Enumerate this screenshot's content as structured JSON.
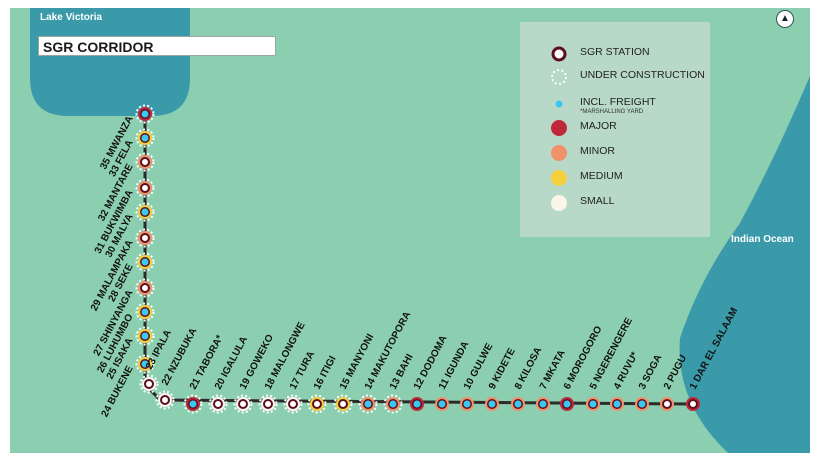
{
  "map": {
    "title": "SGR CORRIDOR",
    "lake_label": "Lake Victoria",
    "ocean_label": "Indian Ocean",
    "compass_glyph": "▲",
    "colors": {
      "land": "#8ccfb0",
      "water": "#3a9aaa",
      "rail": "#2b2b2b",
      "station_ring": "#5a1020",
      "major": "#c0273a",
      "minor": "#f0916a",
      "medium": "#f5cf3c",
      "small": "#fbf6e8",
      "freight": "#3bc8f0"
    }
  },
  "legend": {
    "items": [
      {
        "key": "station",
        "label": "SGR STATION"
      },
      {
        "key": "construction",
        "label": "UNDER CONSTRUCTION"
      },
      {
        "key": "freight",
        "label": "INCL. FREIGHT",
        "sub": "*MARSHALLING YARD"
      },
      {
        "key": "major",
        "label": "MAJOR"
      },
      {
        "key": "minor",
        "label": "MINOR"
      },
      {
        "key": "medium",
        "label": "MEDIUM"
      },
      {
        "key": "small",
        "label": "SMALL"
      }
    ]
  },
  "stations": [
    {
      "num": 1,
      "name": "DAR EL SALAAM",
      "label": "1 DAR EL SALAAM",
      "size": "major",
      "freight": false,
      "construction": false
    },
    {
      "num": 2,
      "name": "PUGU",
      "label": "2 PUGU",
      "size": "minor",
      "freight": false,
      "construction": false
    },
    {
      "num": 3,
      "name": "SOGA",
      "label": "3 SOGA",
      "size": "minor",
      "freight": true,
      "construction": false
    },
    {
      "num": 4,
      "name": "RUVU",
      "label": "4 RUVU*",
      "size": "minor",
      "freight": true,
      "construction": false
    },
    {
      "num": 5,
      "name": "NGERENGERE",
      "label": "5 NGERENGERE",
      "size": "minor",
      "freight": true,
      "construction": false
    },
    {
      "num": 6,
      "name": "MOROGORO",
      "label": "6 MOROGORO",
      "size": "major",
      "freight": true,
      "construction": false
    },
    {
      "num": 7,
      "name": "MKATA",
      "label": "7 MKATA",
      "size": "minor",
      "freight": true,
      "construction": false
    },
    {
      "num": 8,
      "name": "KILOSA",
      "label": "8 KILOSA",
      "size": "minor",
      "freight": true,
      "construction": false
    },
    {
      "num": 9,
      "name": "KIDETE",
      "label": "9 KIDETE",
      "size": "minor",
      "freight": true,
      "construction": false
    },
    {
      "num": 10,
      "name": "GULWE",
      "label": "10 GULWE",
      "size": "minor",
      "freight": true,
      "construction": false
    },
    {
      "num": 11,
      "name": "IGUNDA",
      "label": "11 IGUNDA",
      "size": "minor",
      "freight": true,
      "construction": false
    },
    {
      "num": 12,
      "name": "DODOMA",
      "label": "12 DODOMA",
      "size": "major",
      "freight": true,
      "construction": false
    },
    {
      "num": 13,
      "name": "BAHI",
      "label": "13 BAHI",
      "size": "minor",
      "freight": true,
      "construction": true
    },
    {
      "num": 14,
      "name": "MAKUTOPORA",
      "label": "14 MAKUTOPORA",
      "size": "minor",
      "freight": true,
      "construction": true
    },
    {
      "num": 15,
      "name": "MANYONI",
      "label": "15 MANYONI",
      "size": "medium",
      "freight": false,
      "construction": true
    },
    {
      "num": 16,
      "name": "ITIGI",
      "label": "16 ITIGI",
      "size": "medium",
      "freight": false,
      "construction": true
    },
    {
      "num": 17,
      "name": "TURA",
      "label": "17 TURA",
      "size": "small",
      "freight": false,
      "construction": true
    },
    {
      "num": 18,
      "name": "MALONGWE",
      "label": "18 MALONGWE",
      "size": "small",
      "freight": false,
      "construction": true
    },
    {
      "num": 19,
      "name": "GOWEKO",
      "label": "19 GOWEKO",
      "size": "small",
      "freight": false,
      "construction": true
    },
    {
      "num": 20,
      "name": "IGALULA",
      "label": "20 IGALULA",
      "size": "small",
      "freight": false,
      "construction": true
    },
    {
      "num": 21,
      "name": "TABORA",
      "label": "21 TABORA*",
      "size": "major",
      "freight": true,
      "construction": true
    },
    {
      "num": 22,
      "name": "NZUBUKA",
      "label": "22 NZUBUKA",
      "size": "small",
      "freight": false,
      "construction": true
    },
    {
      "num": 23,
      "name": "IPALA",
      "label": "23 IPALA",
      "size": "small",
      "freight": false,
      "construction": true
    },
    {
      "num": 24,
      "name": "BUKENE",
      "label": "24 BUKENE",
      "size": "medium",
      "freight": true,
      "construction": true
    },
    {
      "num": 25,
      "name": "ISAKA",
      "label": "25 ISAKA",
      "size": "medium",
      "freight": true,
      "construction": true
    },
    {
      "num": 26,
      "name": "LUHUMBO",
      "label": "26 LUHUMBO",
      "size": "medium",
      "freight": true,
      "construction": true
    },
    {
      "num": 27,
      "name": "SHINYANGA",
      "label": "27 SHINYANGA",
      "size": "minor",
      "freight": false,
      "construction": true
    },
    {
      "num": 28,
      "name": "SEKE",
      "label": "28 SEKE",
      "size": "medium",
      "freight": true,
      "construction": true
    },
    {
      "num": 29,
      "name": "MALAMPAKA",
      "label": "29 MALAMPAKA",
      "size": "minor",
      "freight": false,
      "construction": true
    },
    {
      "num": 30,
      "name": "MALYA",
      "label": "30 MALYA",
      "size": "medium",
      "freight": true,
      "construction": true
    },
    {
      "num": 31,
      "name": "BUKWIMBA",
      "label": "31 BUKWIMBA",
      "size": "minor",
      "freight": false,
      "construction": true
    },
    {
      "num": 32,
      "name": "MANTARE",
      "label": "32 MANTARE",
      "size": "minor",
      "freight": false,
      "construction": true
    },
    {
      "num": 33,
      "name": "FELA",
      "label": "33 FELA",
      "size": "medium",
      "freight": true,
      "construction": true
    },
    {
      "num": 35,
      "name": "MWANZA",
      "label": "35 MWANZA",
      "size": "major",
      "freight": true,
      "construction": true
    }
  ]
}
